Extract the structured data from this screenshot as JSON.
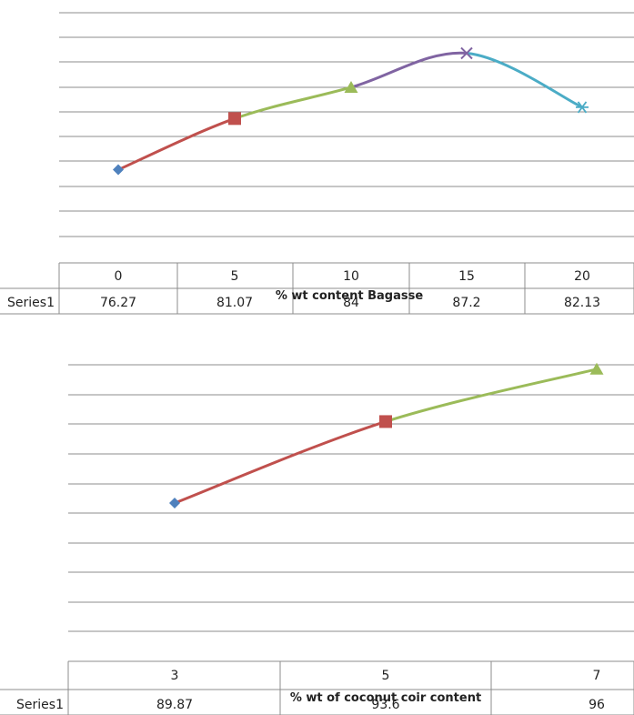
{
  "chart_data": [
    {
      "type": "line",
      "xlabel": "% wt content Bagasse",
      "ylim": [
        70,
        91
      ],
      "grid": true,
      "data_table": true,
      "categories": [
        "0",
        "5",
        "10",
        "15",
        "20"
      ],
      "series": [
        {
          "name": "Series1",
          "values": [
            76.27,
            81.07,
            84,
            87.2,
            82.13
          ]
        }
      ],
      "cell_text": [
        "76.27",
        "81.07",
        "84",
        "87.2",
        "82.13"
      ],
      "segment_colors": [
        "#c0504d",
        "#9bbb59",
        "#8064a2",
        "#4bacc6"
      ],
      "marker_colors": [
        "#4f81bd",
        "#c0504d",
        "#9bbb59",
        "#8064a2",
        "#4bacc6"
      ],
      "markers": [
        "diamond",
        "square",
        "triangle",
        "x",
        "star"
      ]
    },
    {
      "type": "line",
      "xlabel": "% wt of coconut coir content",
      "ylim": [
        84,
        96.2
      ],
      "grid": true,
      "data_table": true,
      "categories": [
        "3",
        "5",
        "7"
      ],
      "series": [
        {
          "name": "Series1",
          "values": [
            89.87,
            93.6,
            96
          ]
        }
      ],
      "cell_text": [
        "89.87",
        "93.6",
        "96"
      ],
      "segment_colors": [
        "#c0504d",
        "#9bbb59"
      ],
      "marker_colors": [
        "#4f81bd",
        "#c0504d",
        "#9bbb59"
      ],
      "markers": [
        "diamond",
        "square",
        "triangle"
      ]
    }
  ]
}
